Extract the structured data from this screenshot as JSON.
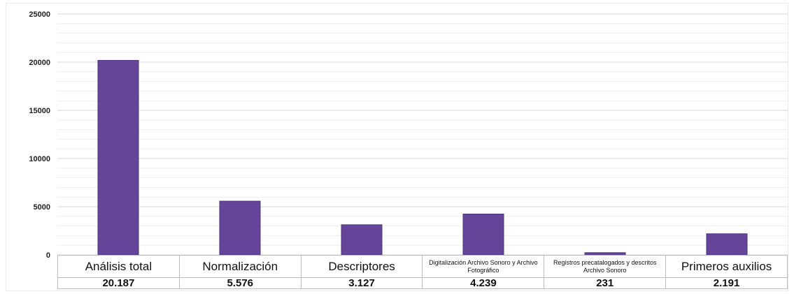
{
  "chart_data": {
    "type": "bar",
    "categories": [
      "Análisis total",
      "Normalización",
      "Descriptores",
      "Digitalización Archivo Sonoro y Archivo Fotográfico",
      "Registros precatalogados y descritos Archivo Sonoro",
      "Primeros auxilios"
    ],
    "values": [
      20187,
      5576,
      3127,
      4239,
      231,
      2191
    ],
    "value_labels": [
      "20.187",
      "5.576",
      "3.127",
      "4.239",
      "231",
      "2.191"
    ],
    "yticks": [
      "0",
      "5000",
      "10000",
      "15000",
      "20000",
      "25000"
    ],
    "ylim": [
      0,
      25000
    ],
    "grid": true,
    "minor_gridlines_per_major": 5,
    "legend": "none",
    "colors": {
      "bar": "#654599",
      "bar_edge": "#4e3480",
      "grid": "#d9d9d9",
      "minor_grid": "#eeeeee"
    }
  }
}
